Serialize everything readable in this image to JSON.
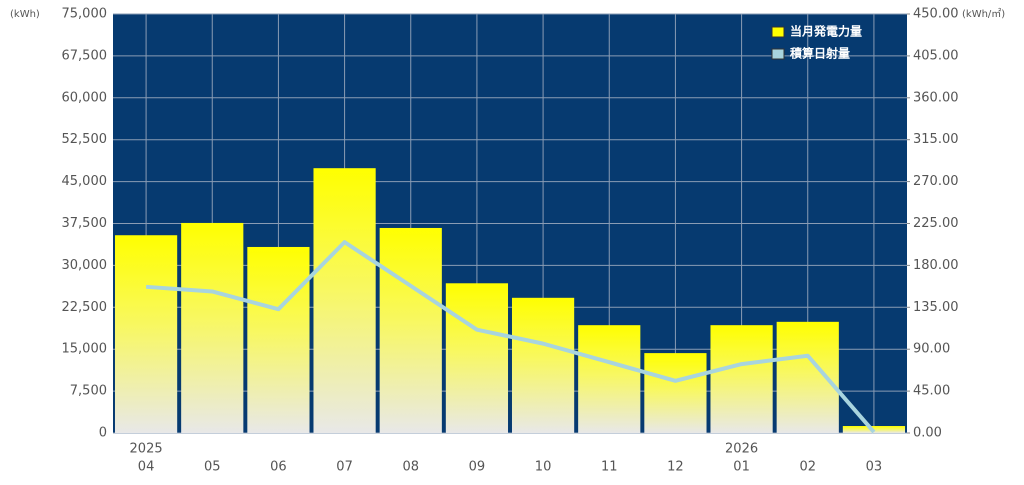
{
  "chart_data": {
    "type": "bar",
    "y_unit": "(kWh)",
    "y2_unit": "(kWh/㎡)",
    "categories": [
      "04",
      "05",
      "06",
      "07",
      "08",
      "09",
      "10",
      "11",
      "12",
      "01",
      "02",
      "03"
    ],
    "years": [
      "2025",
      null,
      null,
      null,
      null,
      null,
      null,
      null,
      null,
      "2026",
      null,
      null
    ],
    "series": [
      {
        "name": "当月発電力量",
        "color": "#ffff00",
        "values": [
          35400,
          37600,
          33300,
          47400,
          36700,
          26800,
          24200,
          19300,
          14300,
          19300,
          19900,
          1250
        ]
      },
      {
        "name": "積算日射量",
        "color": "#a8d4de",
        "axis": "y2",
        "values": [
          157,
          152,
          133,
          205,
          158,
          111,
          96,
          76,
          56,
          74,
          83,
          1
        ]
      }
    ],
    "ylim": [
      0,
      75000
    ],
    "yticks": [
      0,
      {
        "value": 7500,
        "label": "7,500"
      },
      {
        "value": 15000,
        "label": "15,000"
      },
      {
        "value": 22500,
        "label": "22,500"
      },
      {
        "value": 30000,
        "label": "30,000"
      },
      {
        "value": 37500,
        "label": "37,500"
      },
      {
        "value": 45000,
        "label": "45,000"
      },
      {
        "value": 52500,
        "label": "52,500"
      },
      {
        "value": 60000,
        "label": "60,000"
      },
      {
        "value": 67500,
        "label": "67,500"
      },
      {
        "value": 75000,
        "label": "75,000"
      }
    ],
    "y2lim": [
      0,
      450
    ],
    "y2ticks": [
      {
        "value": 0,
        "label": "0.00"
      },
      {
        "value": 45,
        "label": "45.00"
      },
      {
        "value": 90,
        "label": "90.00"
      },
      {
        "value": 135,
        "label": "135.00"
      },
      {
        "value": 180,
        "label": "180.00"
      },
      {
        "value": 225,
        "label": "225.00"
      },
      {
        "value": 270,
        "label": "270.00"
      },
      {
        "value": 315,
        "label": "315.00"
      },
      {
        "value": 360,
        "label": "360.00"
      },
      {
        "value": 405,
        "label": "405.00"
      },
      {
        "value": 450,
        "label": "450.00"
      }
    ],
    "grid": true,
    "legend": "top-right"
  }
}
